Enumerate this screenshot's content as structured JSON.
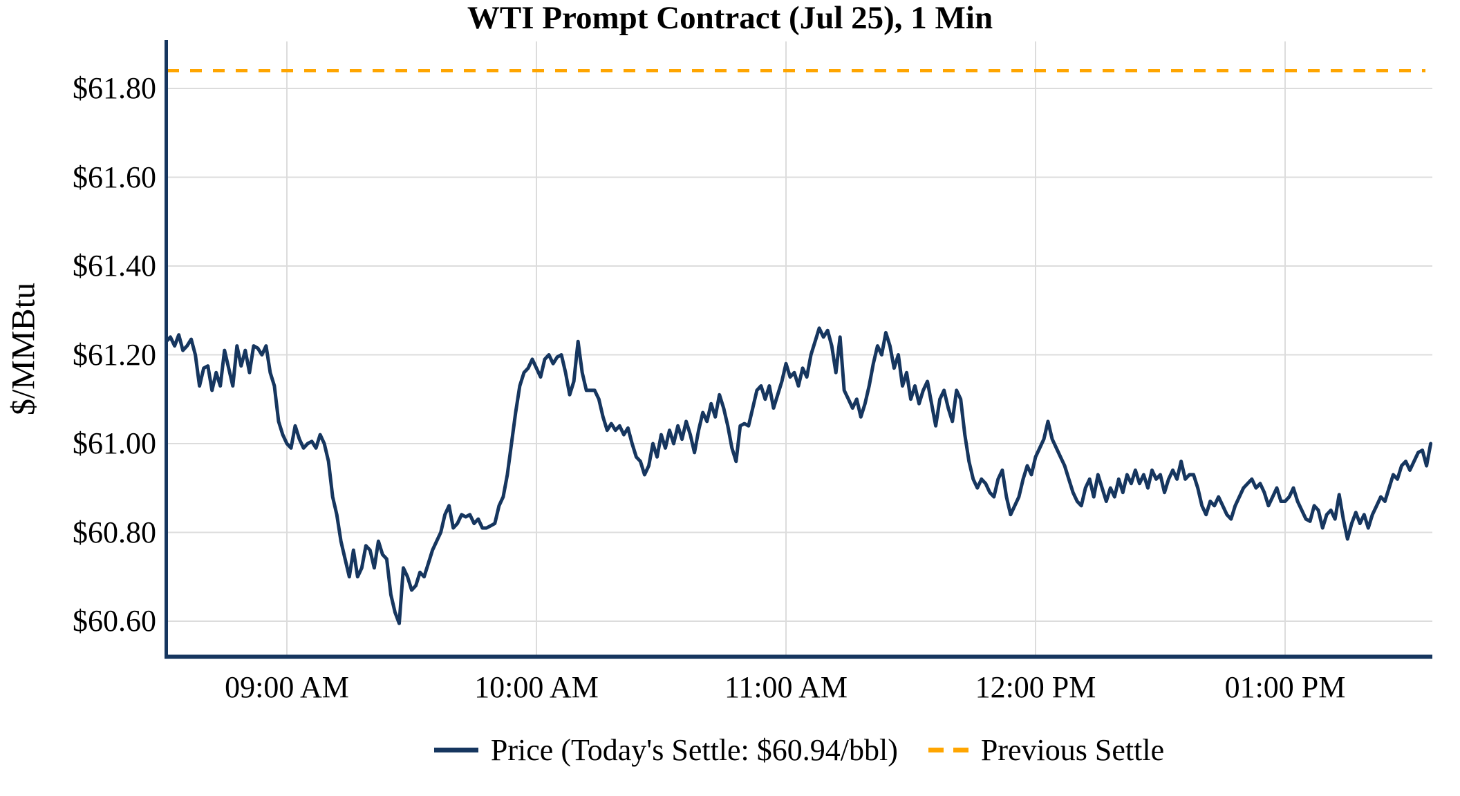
{
  "colors": {
    "price_line": "#16365F",
    "prev_settle": "#FFA500",
    "gridline": "#DCDCDC",
    "axis": "#16365F",
    "text": "#000000",
    "background": "#FFFFFF"
  },
  "chart_data": {
    "type": "line",
    "title": "WTI Prompt Contract (Jul 25), 1 Min",
    "xlabel": "",
    "ylabel": "$/MMBtu",
    "grid": true,
    "legend_position": "bottom",
    "todays_settle_usd_per_bbl": 60.94,
    "previous_settle": 61.84,
    "ylim": [
      60.52,
      61.91
    ],
    "x_start_label": "8:31 AM",
    "x_end_label": "1:35 PM",
    "x_interval_minutes": 1,
    "x_ticks": [
      {
        "label": "09:00 AM",
        "minute": 29
      },
      {
        "label": "10:00 AM",
        "minute": 89
      },
      {
        "label": "11:00 AM",
        "minute": 149
      },
      {
        "label": "12:00 PM",
        "minute": 209
      },
      {
        "label": "01:00 PM",
        "minute": 269
      }
    ],
    "y_ticks": [
      {
        "label": "$61.80",
        "value": 61.8
      },
      {
        "label": "$61.60",
        "value": 61.6
      },
      {
        "label": "$61.40",
        "value": 61.4
      },
      {
        "label": "$61.20",
        "value": 61.2
      },
      {
        "label": "$61.00",
        "value": 61.0
      },
      {
        "label": "$60.80",
        "value": 60.8
      },
      {
        "label": "$60.60",
        "value": 60.6
      }
    ],
    "series": [
      {
        "name": "Price (Today's Settle: $60.94/bbl)",
        "color": "#16365F",
        "style": "solid",
        "values": [
          61.23,
          61.24,
          61.22,
          61.245,
          61.21,
          61.22,
          61.235,
          61.2,
          61.13,
          61.17,
          61.175,
          61.12,
          61.16,
          61.13,
          61.21,
          61.17,
          61.13,
          61.22,
          61.175,
          61.21,
          61.16,
          61.22,
          61.215,
          61.2,
          61.22,
          61.16,
          61.13,
          61.05,
          61.02,
          61.0,
          60.99,
          61.04,
          61.01,
          60.99,
          61.0,
          61.005,
          60.99,
          61.02,
          61.0,
          60.96,
          60.88,
          60.84,
          60.78,
          60.74,
          60.7,
          60.76,
          60.7,
          60.72,
          60.77,
          60.76,
          60.72,
          60.78,
          60.75,
          60.74,
          60.66,
          60.62,
          60.595,
          60.72,
          60.7,
          60.67,
          60.68,
          60.71,
          60.7,
          60.73,
          60.76,
          60.78,
          60.8,
          60.84,
          60.86,
          60.81,
          60.82,
          60.84,
          60.835,
          60.84,
          60.82,
          60.83,
          60.81,
          60.81,
          60.815,
          60.82,
          60.86,
          60.88,
          60.93,
          61.0,
          61.07,
          61.13,
          61.16,
          61.17,
          61.19,
          61.17,
          61.15,
          61.19,
          61.2,
          61.18,
          61.195,
          61.2,
          61.16,
          61.11,
          61.14,
          61.23,
          61.16,
          61.12,
          61.12,
          61.12,
          61.1,
          61.06,
          61.03,
          61.045,
          61.03,
          61.04,
          61.02,
          61.035,
          61.0,
          60.97,
          60.96,
          60.93,
          60.95,
          61.0,
          60.97,
          61.02,
          60.99,
          61.03,
          61.0,
          61.04,
          61.01,
          61.05,
          61.02,
          60.98,
          61.03,
          61.07,
          61.05,
          61.09,
          61.06,
          61.11,
          61.08,
          61.04,
          60.99,
          60.96,
          61.04,
          61.045,
          61.04,
          61.08,
          61.12,
          61.13,
          61.1,
          61.13,
          61.08,
          61.11,
          61.14,
          61.18,
          61.15,
          61.16,
          61.13,
          61.17,
          61.15,
          61.2,
          61.23,
          61.26,
          61.24,
          61.255,
          61.22,
          61.16,
          61.24,
          61.12,
          61.1,
          61.08,
          61.1,
          61.06,
          61.09,
          61.13,
          61.18,
          61.22,
          61.2,
          61.25,
          61.22,
          61.17,
          61.2,
          61.13,
          61.16,
          61.1,
          61.13,
          61.09,
          61.12,
          61.14,
          61.09,
          61.04,
          61.1,
          61.12,
          61.08,
          61.05,
          61.12,
          61.1,
          61.02,
          60.96,
          60.92,
          60.9,
          60.92,
          60.91,
          60.89,
          60.88,
          60.92,
          60.94,
          60.88,
          60.84,
          60.86,
          60.88,
          60.92,
          60.95,
          60.93,
          60.97,
          60.99,
          61.01,
          61.05,
          61.01,
          60.99,
          60.97,
          60.95,
          60.92,
          60.89,
          60.87,
          60.86,
          60.9,
          60.92,
          60.88,
          60.93,
          60.9,
          60.87,
          60.9,
          60.88,
          60.92,
          60.89,
          60.93,
          60.91,
          60.94,
          60.91,
          60.93,
          60.9,
          60.94,
          60.92,
          60.93,
          60.89,
          60.92,
          60.94,
          60.92,
          60.96,
          60.92,
          60.93,
          60.93,
          60.9,
          60.86,
          60.84,
          60.87,
          60.86,
          60.88,
          60.86,
          60.84,
          60.83,
          60.86,
          60.88,
          60.9,
          60.91,
          60.92,
          60.9,
          60.91,
          60.89,
          60.86,
          60.88,
          60.9,
          60.87,
          60.87,
          60.88,
          60.9,
          60.87,
          60.85,
          60.83,
          60.825,
          60.86,
          60.85,
          60.81,
          60.84,
          60.85,
          60.83,
          60.885,
          60.83,
          60.785,
          60.82,
          60.845,
          60.82,
          60.84,
          60.81,
          60.84,
          60.86,
          60.88,
          60.87,
          60.9,
          60.93,
          60.92,
          60.95,
          60.96,
          60.94,
          60.96,
          60.98,
          60.985,
          60.95,
          61.0
        ]
      },
      {
        "name": "Previous Settle",
        "color": "#FFA500",
        "style": "dashed",
        "value": 61.84
      }
    ]
  }
}
